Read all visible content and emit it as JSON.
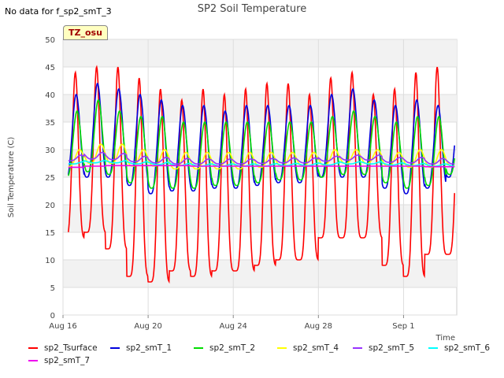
{
  "header": {
    "no_data_note": "No data for f_sp2_smT_3",
    "badge": "TZ_osu"
  },
  "chart_data": {
    "type": "line",
    "title": "SP2 Soil Temperature",
    "xlabel": "Time",
    "ylabel": "Soil Temperature (C)",
    "ylim": [
      0,
      50
    ],
    "yticks": [
      0,
      5,
      10,
      15,
      20,
      25,
      30,
      35,
      40,
      45,
      50
    ],
    "xlim": [
      "2023-08-16",
      "2023-09-03 12:00"
    ],
    "xticks": [
      {
        "label": "Aug 16",
        "x": "2023-08-16"
      },
      {
        "label": "Aug 20",
        "x": "2023-08-20"
      },
      {
        "label": "Aug 24",
        "x": "2023-08-24"
      },
      {
        "label": "Aug 28",
        "x": "2023-08-28"
      },
      {
        "label": "Sep 1",
        "x": "2023-09-01"
      }
    ],
    "grid": true,
    "legend_position": "bottom",
    "days": [
      "2023-08-16",
      "2023-08-17",
      "2023-08-18",
      "2023-08-19",
      "2023-08-20",
      "2023-08-21",
      "2023-08-22",
      "2023-08-23",
      "2023-08-24",
      "2023-08-25",
      "2023-08-26",
      "2023-08-27",
      "2023-08-28",
      "2023-08-29",
      "2023-08-30",
      "2023-08-31",
      "2023-09-01",
      "2023-09-02",
      "2023-09-03"
    ],
    "series": [
      {
        "name": "sp2_Tsurface",
        "color": "#ff0000",
        "phase": 0.58,
        "daily_max": [
          44,
          45,
          45,
          43,
          41,
          39,
          41,
          40,
          41,
          42,
          42,
          40,
          43,
          44,
          40,
          41,
          44,
          45,
          38
        ],
        "daily_min": [
          14,
          15,
          12,
          7,
          6,
          8,
          7,
          8,
          8,
          9,
          10,
          10,
          14,
          14,
          14,
          9,
          7,
          11,
          11
        ]
      },
      {
        "name": "sp2_smT_1",
        "color": "#0000dd",
        "phase": 0.62,
        "daily_max": [
          40,
          42,
          41,
          40,
          39,
          38,
          38,
          37,
          38,
          38,
          38,
          38,
          40,
          41,
          39,
          38,
          39,
          38,
          38
        ],
        "daily_min": [
          24.5,
          25,
          25,
          23.5,
          22,
          22.5,
          22.5,
          23,
          23,
          23.5,
          24,
          24,
          25,
          25,
          25,
          23,
          22,
          23,
          25
        ]
      },
      {
        "name": "sp2_smT_2",
        "color": "#00dd00",
        "phase": 0.66,
        "daily_max": [
          37,
          39,
          37,
          36,
          36,
          35,
          35,
          35,
          35,
          35,
          35,
          35,
          36,
          37,
          36,
          35,
          36,
          36,
          35
        ],
        "daily_min": [
          25,
          26,
          25.5,
          24,
          23,
          23,
          23,
          23.5,
          23.5,
          24,
          24.5,
          24.5,
          25,
          25.5,
          25.5,
          24,
          23,
          23.5,
          25.5
        ]
      },
      {
        "name": "sp2_smT_4",
        "color": "#ffff00",
        "phase": 0.78,
        "daily_max": [
          30,
          31,
          31,
          30,
          30,
          29.5,
          29.5,
          29.5,
          29.5,
          29.5,
          29.5,
          29.5,
          30,
          30,
          30,
          29.5,
          30,
          30,
          29.5
        ],
        "daily_min": [
          27,
          27.5,
          27.5,
          27,
          27,
          26.5,
          26.5,
          26.5,
          26.5,
          26.8,
          27,
          27,
          27.2,
          27.5,
          27.5,
          27,
          26.8,
          26.8,
          27
        ]
      },
      {
        "name": "sp2_smT_5",
        "color": "#9933ff",
        "phase": 0.85,
        "daily_max": [
          29,
          29.5,
          29.3,
          28.8,
          28.6,
          28.4,
          28.3,
          28.3,
          28.3,
          28.4,
          28.5,
          28.5,
          28.8,
          29,
          29,
          28.6,
          28.6,
          28.4,
          28.4
        ],
        "daily_min": [
          28,
          28.3,
          28.2,
          27.8,
          27.6,
          27.4,
          27.4,
          27.4,
          27.4,
          27.5,
          27.6,
          27.6,
          27.9,
          28.1,
          28.1,
          27.7,
          27.6,
          27.4,
          27.4
        ]
      },
      {
        "name": "sp2_smT_6",
        "color": "#00ffff",
        "phase": 0.95,
        "daily_max": [
          27.8,
          28,
          28,
          27.8,
          27.7,
          27.5,
          27.4,
          27.4,
          27.4,
          27.4,
          27.5,
          27.5,
          27.6,
          27.8,
          27.8,
          27.6,
          27.5,
          27.4,
          27.4
        ],
        "daily_min": [
          27.4,
          27.6,
          27.6,
          27.4,
          27.3,
          27.1,
          27.0,
          27.0,
          27.0,
          27.0,
          27.1,
          27.1,
          27.2,
          27.4,
          27.4,
          27.2,
          27.1,
          27.0,
          27.0
        ]
      },
      {
        "name": "sp2_smT_7",
        "color": "#ee00ee",
        "phase": 0.5,
        "daily_max": [
          26.8,
          27.0,
          27.1,
          27.1,
          27.1,
          27.1,
          27.0,
          27.0,
          27.0,
          27.0,
          27.0,
          27.0,
          27.0,
          27.0,
          27.0,
          27.0,
          27.0,
          26.9,
          26.9
        ],
        "daily_min": [
          26.8,
          27.0,
          27.1,
          27.1,
          27.1,
          27.1,
          27.0,
          27.0,
          27.0,
          27.0,
          27.0,
          27.0,
          27.0,
          27.0,
          27.0,
          27.0,
          27.0,
          26.9,
          26.9
        ]
      }
    ]
  }
}
